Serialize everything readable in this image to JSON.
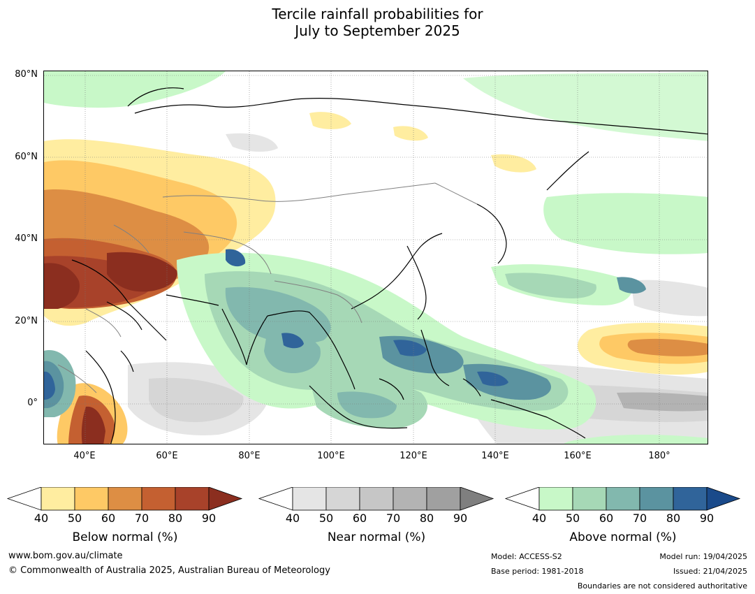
{
  "title": {
    "line1": "Tercile rainfall probabilities for",
    "line2": "July to September 2025"
  },
  "map": {
    "lat_labels": [
      "80°N",
      "60°N",
      "40°N",
      "20°N",
      "0°"
    ],
    "lon_labels": [
      "40°E",
      "60°E",
      "80°E",
      "100°E",
      "120°E",
      "140°E",
      "160°E",
      "180°"
    ],
    "lat_range": [
      -10,
      81
    ],
    "lon_range": [
      30,
      192
    ]
  },
  "colorbars": [
    {
      "title": "Below normal (%)",
      "ticks": [
        "40",
        "50",
        "60",
        "70",
        "80",
        "90"
      ],
      "colors": [
        "#ffffff",
        "#ffeda0",
        "#fec965",
        "#dd8e44",
        "#c46031",
        "#a8422a",
        "#8b2e1f"
      ]
    },
    {
      "title": "Near normal (%)",
      "ticks": [
        "40",
        "50",
        "60",
        "70",
        "80",
        "90"
      ],
      "colors": [
        "#ffffff",
        "#e5e5e5",
        "#d6d6d6",
        "#c6c6c6",
        "#b3b3b3",
        "#a0a0a0",
        "#7f7f7f"
      ]
    },
    {
      "title": "Above normal (%)",
      "ticks": [
        "40",
        "50",
        "60",
        "70",
        "80",
        "90"
      ],
      "colors": [
        "#ffffff",
        "#c8f8c8",
        "#a6d8b6",
        "#82b8ae",
        "#5b93a0",
        "#30649a",
        "#1a4a8a"
      ]
    }
  ],
  "footer": {
    "website": "www.bom.gov.au/climate",
    "copyright": "© Commonwealth of Australia 2025, Australian Bureau of Meteorology",
    "model": "Model: ACCESS-S2",
    "base_period": "Base period: 1981-2018",
    "model_run": "Model run: 19/04/2025",
    "issued": "Issued: 21/04/2025",
    "disclaimer": "Boundaries are not considered authoritative"
  }
}
